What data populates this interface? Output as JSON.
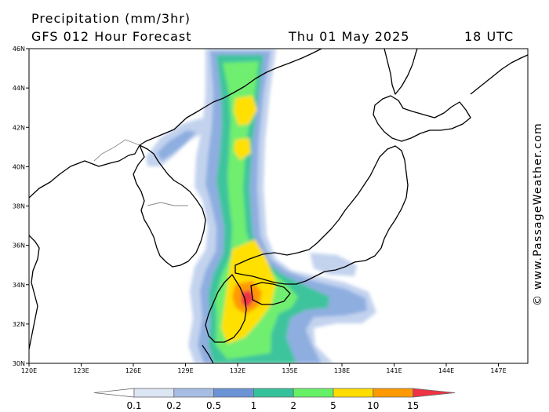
{
  "header": {
    "title": "Precipitation (mm/3hr)",
    "subtitle": "GFS 012 Hour Forecast",
    "date": "Thu 01 May 2025",
    "time": "18 UTC"
  },
  "credit": "© www.PassageWeather.com",
  "map": {
    "lat_labels": [
      "46N",
      "44N",
      "42N",
      "40N",
      "38N",
      "36N",
      "34N",
      "32N",
      "30N"
    ],
    "lon_labels": [
      "120E",
      "123E",
      "126E",
      "129E",
      "132E",
      "135E",
      "138E",
      "141E",
      "144E",
      "147E"
    ]
  },
  "legend": {
    "title": "",
    "labels": [
      "0.1",
      "0.2",
      "0.5",
      "1",
      "2",
      "5",
      "10",
      "15"
    ],
    "colors": [
      "#ffffff",
      "#dde6f5",
      "#a6bee4",
      "#6b93d6",
      "#33c29a",
      "#66f066",
      "#ffdd00",
      "#ff9900",
      "#ee3344"
    ]
  },
  "precip_colors": {
    "light": "#c3d3ee",
    "blue": "#8eaee0",
    "teal": "#3cc49c",
    "green": "#70ee70",
    "yellow": "#ffe000",
    "orange": "#ff9a00",
    "red": "#ee3344"
  }
}
